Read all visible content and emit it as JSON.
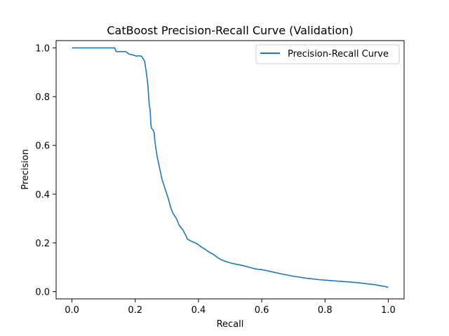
{
  "chart_data": {
    "type": "line",
    "title": "CatBoost Precision-Recall Curve (Validation)",
    "xlabel": "Recall",
    "ylabel": "Precision",
    "xlim": [
      -0.05,
      1.05
    ],
    "ylim": [
      -0.03,
      1.03
    ],
    "xticks": [
      0.0,
      0.2,
      0.4,
      0.6,
      0.8,
      1.0
    ],
    "xtick_labels": [
      "0.0",
      "0.2",
      "0.4",
      "0.6",
      "0.8",
      "1.0"
    ],
    "yticks": [
      0.0,
      0.2,
      0.4,
      0.6,
      0.8,
      1.0
    ],
    "ytick_labels": [
      "0.0",
      "0.2",
      "0.4",
      "0.6",
      "0.8",
      "1.0"
    ],
    "grid": false,
    "legend": {
      "position": "upper-right"
    },
    "series": [
      {
        "name": "Precision-Recall Curve",
        "color": "#1f77b4",
        "x": [
          0.0,
          0.05,
          0.1,
          0.135,
          0.14,
          0.17,
          0.175,
          0.18,
          0.19,
          0.2,
          0.205,
          0.21,
          0.22,
          0.23,
          0.235,
          0.24,
          0.243,
          0.245,
          0.247,
          0.25,
          0.252,
          0.255,
          0.258,
          0.26,
          0.262,
          0.265,
          0.27,
          0.275,
          0.28,
          0.285,
          0.29,
          0.295,
          0.3,
          0.305,
          0.31,
          0.315,
          0.32,
          0.33,
          0.34,
          0.35,
          0.36,
          0.365,
          0.37,
          0.38,
          0.39,
          0.4,
          0.41,
          0.42,
          0.43,
          0.44,
          0.45,
          0.46,
          0.47,
          0.48,
          0.49,
          0.5,
          0.52,
          0.54,
          0.56,
          0.58,
          0.6,
          0.62,
          0.64,
          0.66,
          0.68,
          0.7,
          0.72,
          0.74,
          0.76,
          0.78,
          0.8,
          0.82,
          0.84,
          0.86,
          0.88,
          0.9,
          0.92,
          0.94,
          0.96,
          0.97,
          0.98,
          0.99,
          1.0
        ],
        "y": [
          1.0,
          1.0,
          1.0,
          1.0,
          0.985,
          0.985,
          0.98,
          0.975,
          0.972,
          0.968,
          0.966,
          0.968,
          0.966,
          0.945,
          0.9,
          0.85,
          0.79,
          0.76,
          0.75,
          0.68,
          0.67,
          0.665,
          0.66,
          0.65,
          0.62,
          0.59,
          0.55,
          0.52,
          0.49,
          0.46,
          0.44,
          0.42,
          0.4,
          0.38,
          0.355,
          0.335,
          0.32,
          0.3,
          0.27,
          0.255,
          0.23,
          0.215,
          0.212,
          0.205,
          0.2,
          0.192,
          0.182,
          0.175,
          0.165,
          0.158,
          0.15,
          0.14,
          0.132,
          0.127,
          0.122,
          0.118,
          0.112,
          0.107,
          0.1,
          0.093,
          0.09,
          0.085,
          0.079,
          0.073,
          0.068,
          0.063,
          0.059,
          0.055,
          0.052,
          0.049,
          0.047,
          0.045,
          0.043,
          0.041,
          0.039,
          0.037,
          0.034,
          0.031,
          0.028,
          0.025,
          0.023,
          0.021,
          0.017
        ]
      }
    ]
  }
}
